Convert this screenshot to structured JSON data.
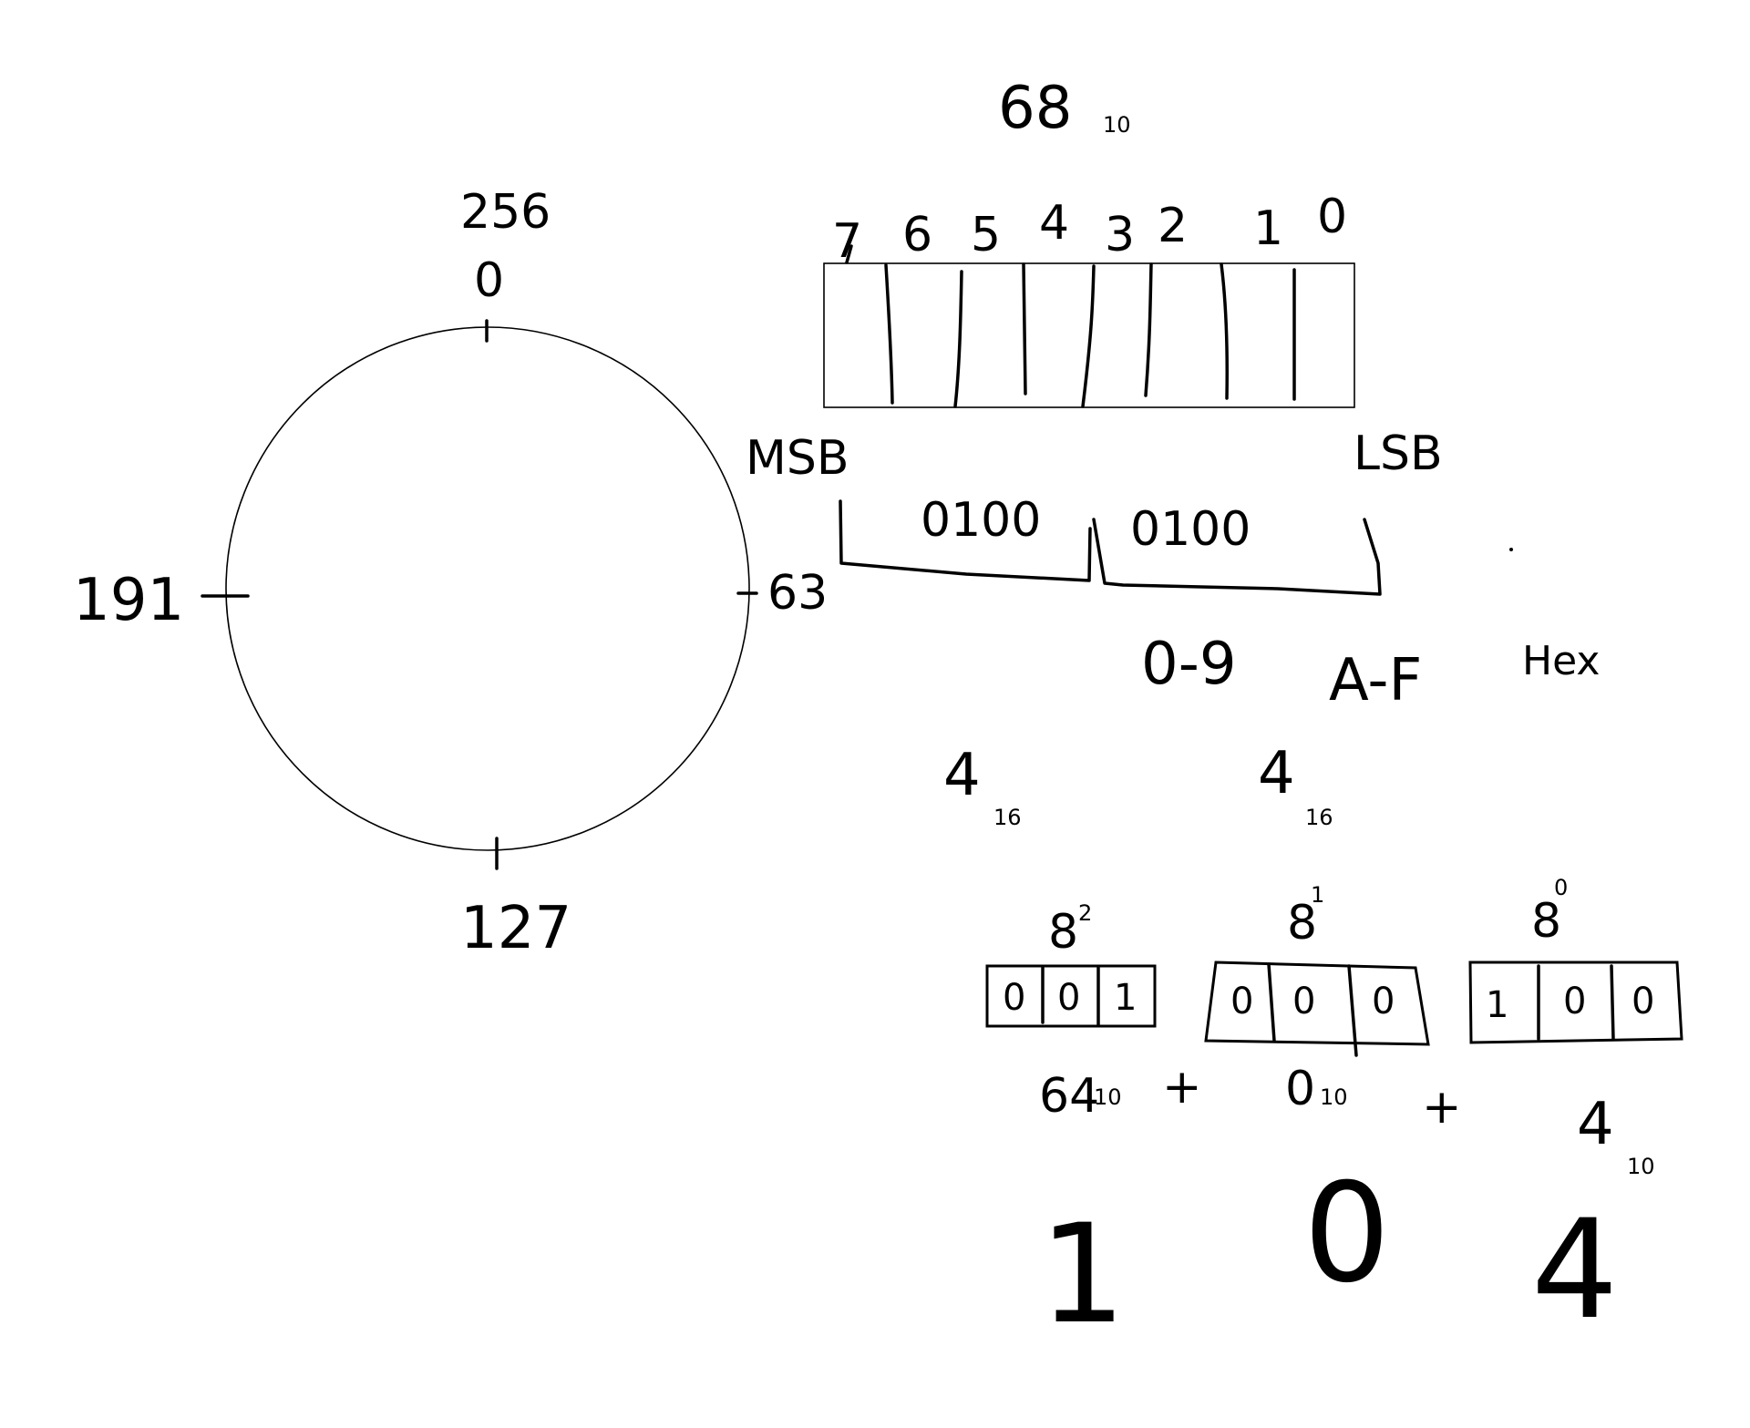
{
  "number_68": {
    "value": "68",
    "base": "10"
  },
  "wheel": {
    "top_outer": "256",
    "top_inner": "0",
    "right": "63",
    "bottom": "127",
    "left": "191"
  },
  "byte_register": {
    "bit_indices": [
      "7",
      "6",
      "5",
      "4",
      "3",
      "2",
      "1",
      "0"
    ],
    "msb_label": "MSB",
    "lsb_label": "LSB"
  },
  "nibbles": {
    "high": "0100",
    "low": "0100",
    "hex_high": {
      "value": "4",
      "base": "16"
    },
    "hex_low": {
      "value": "4",
      "base": "16"
    }
  },
  "hex_range": {
    "digits": "0-9",
    "letters": "A-F",
    "label": "Hex"
  },
  "octal": {
    "digits": [
      {
        "base": "8",
        "exp": "2",
        "bits": [
          "0",
          "0",
          "1"
        ],
        "value": "64",
        "value_base": "10"
      },
      {
        "base": "8",
        "exp": "1",
        "bits": [
          "0",
          "0",
          "0"
        ],
        "value": "0",
        "value_base": "10"
      },
      {
        "base": "8",
        "exp": "0",
        "bits": [
          "1",
          "0",
          "0"
        ],
        "value": "4",
        "value_base": "10"
      }
    ],
    "plus": "+",
    "result": [
      "1",
      "0",
      "4"
    ]
  }
}
